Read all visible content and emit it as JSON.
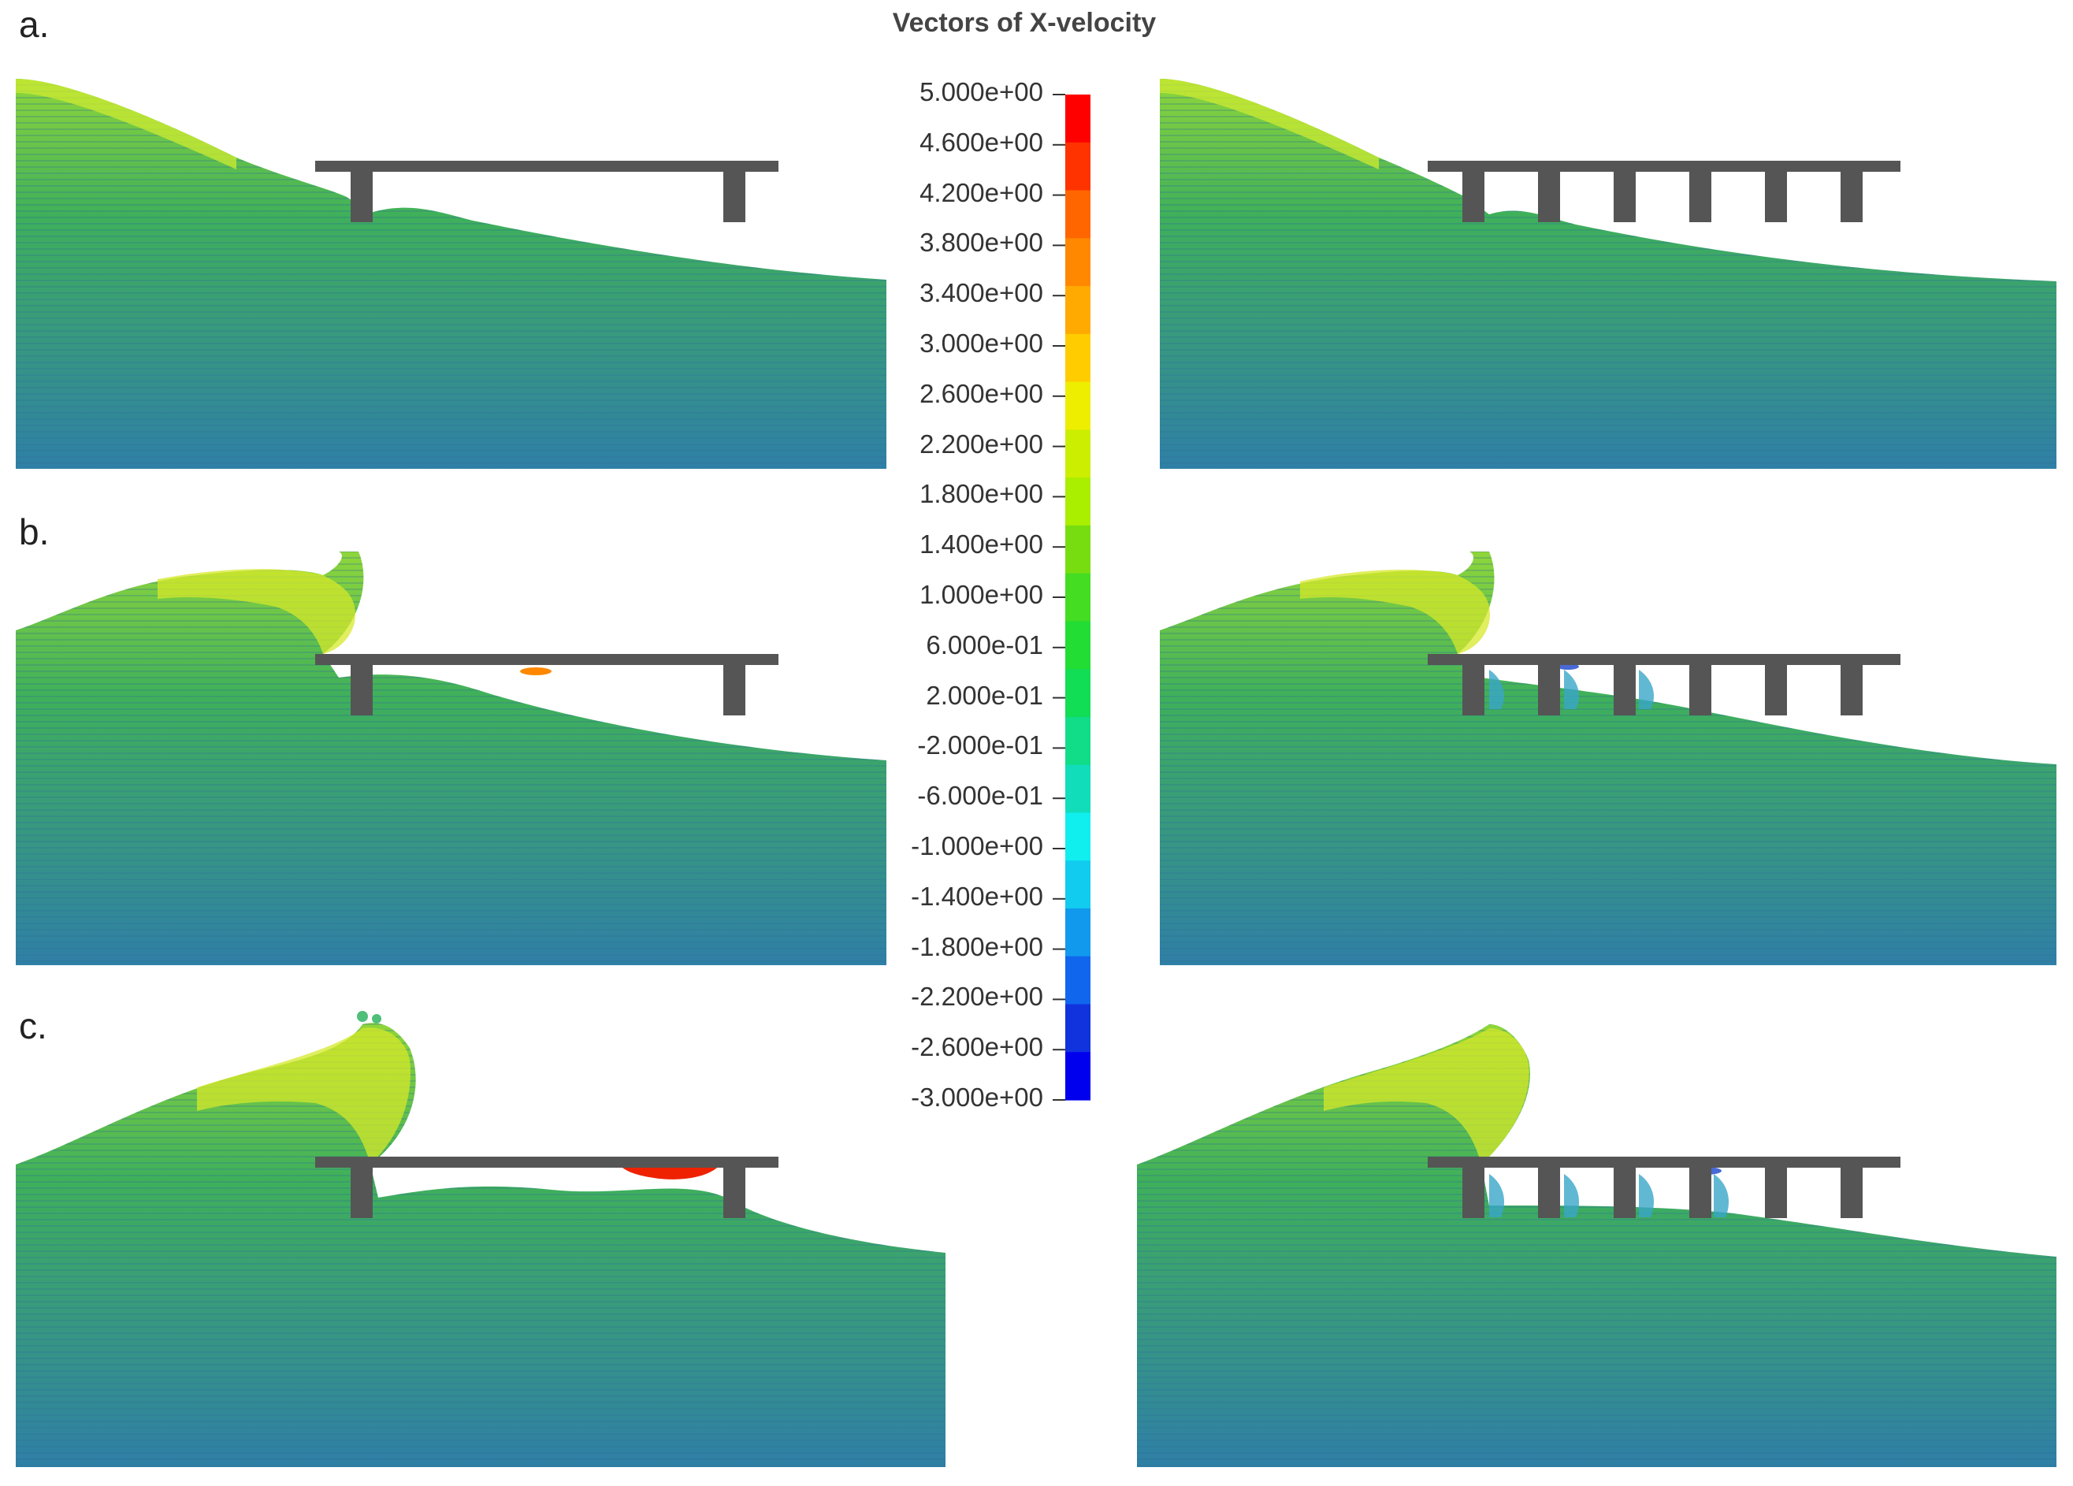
{
  "title": "Vectors of X-velocity",
  "row_labels": [
    "a.",
    "b.",
    "c."
  ],
  "colorbar": {
    "min": -3.0,
    "max": 5.0,
    "ticks": [
      "5.000e+00",
      "4.600e+00",
      "4.200e+00",
      "3.800e+00",
      "3.400e+00",
      "3.000e+00",
      "2.600e+00",
      "2.200e+00",
      "1.800e+00",
      "1.400e+00",
      "1.000e+00",
      "6.000e-01",
      "2.000e-01",
      "-2.000e-01",
      "-6.000e-01",
      "-1.000e+00",
      "-1.400e+00",
      "-1.800e+00",
      "-2.200e+00",
      "-2.600e+00",
      "-3.000e+00"
    ],
    "colors": [
      "#ff0000",
      "#ff3300",
      "#ff6600",
      "#ff8800",
      "#ffaa00",
      "#ffcc00",
      "#eeee00",
      "#ccee00",
      "#aaee00",
      "#77dd11",
      "#44dd22",
      "#22dd33",
      "#11dd55",
      "#11dd88",
      "#11ddbb",
      "#11eeee",
      "#11ccee",
      "#1199ee",
      "#1166ee",
      "#1133dd",
      "#0000ee"
    ]
  },
  "colors": {
    "water_deep": "#2f7fa6",
    "water_mid": "#3fae5a",
    "water_fast": "#aee52a",
    "deck": "#555555",
    "background": "#ffffff"
  }
}
